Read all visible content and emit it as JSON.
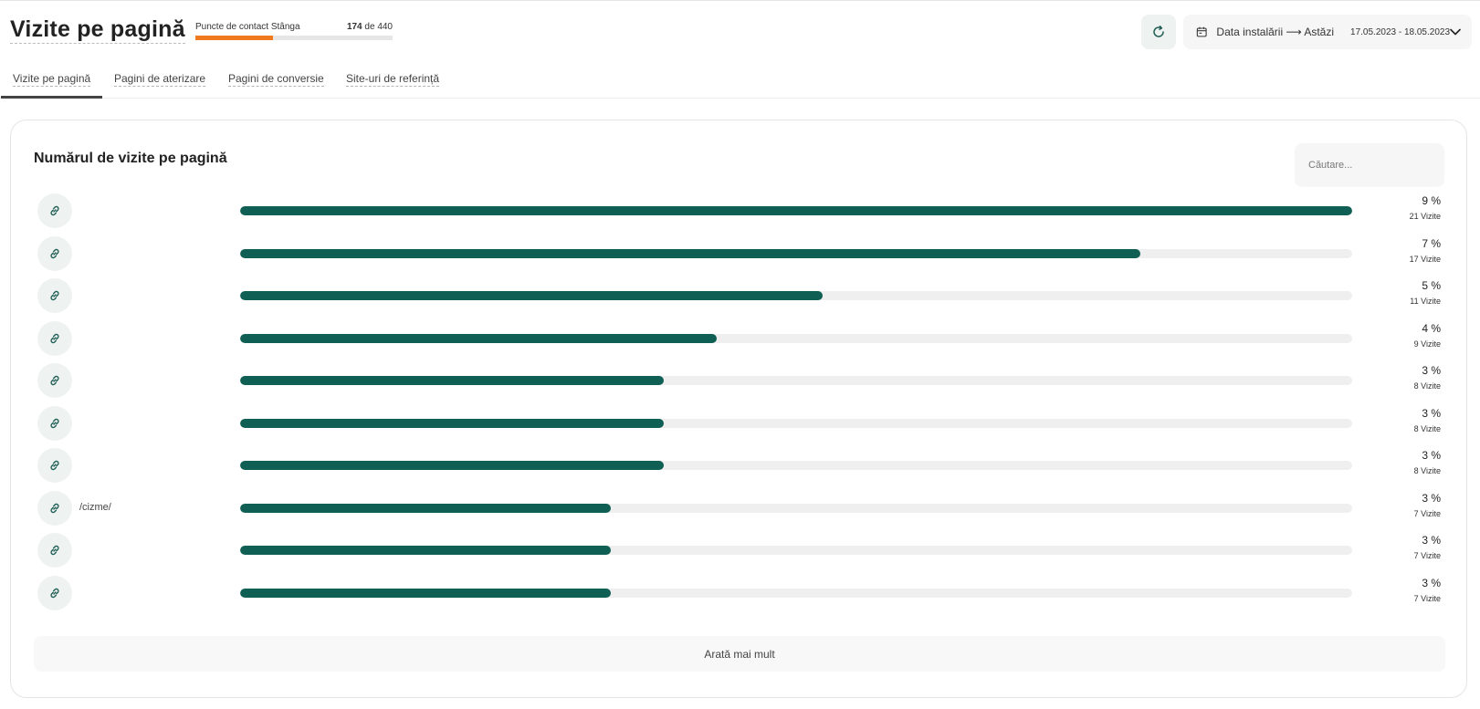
{
  "header": {
    "title": "Vizite pe pagină",
    "contact_points": {
      "label": "Puncte de contact Stânga",
      "used": "174",
      "separator": "de",
      "total": "440",
      "fraction": 0.395,
      "bar_color": "#f07a1e"
    },
    "refresh_icon": "refresh-icon",
    "date_filter": {
      "icon": "calendar-icon",
      "label": "Data instalării ⟶ Astăzi",
      "range": "17.05.2023 - 18.05.2023",
      "chevron": "chevron-down-icon"
    }
  },
  "tabs": [
    {
      "label": "Vizite pe pagină",
      "active": true
    },
    {
      "label": "Pagini de aterizare",
      "active": false
    },
    {
      "label": "Pagini de conversie",
      "active": false
    },
    {
      "label": "Site-uri de referință",
      "active": false
    }
  ],
  "card": {
    "title": "Numărul de vizite pe pagină",
    "search_placeholder": "Căutare...",
    "show_more_label": "Arată mai mult",
    "bar_color": "#0f5f54",
    "track_color": "#efefef",
    "rows": [
      {
        "label": "",
        "percent": "9 %",
        "visits": "21 Vizite",
        "value": 21
      },
      {
        "label": "",
        "percent": "7 %",
        "visits": "17 Vizite",
        "value": 17
      },
      {
        "label": "",
        "percent": "5 %",
        "visits": "11 Vizite",
        "value": 11
      },
      {
        "label": "",
        "percent": "4 %",
        "visits": "9 Vizite",
        "value": 9
      },
      {
        "label": "",
        "percent": "3 %",
        "visits": "8 Vizite",
        "value": 8
      },
      {
        "label": "",
        "percent": "3 %",
        "visits": "8 Vizite",
        "value": 8
      },
      {
        "label": "",
        "percent": "3 %",
        "visits": "8 Vizite",
        "value": 8
      },
      {
        "label": "/cizme/",
        "percent": "3 %",
        "visits": "7 Vizite",
        "value": 7
      },
      {
        "label": "",
        "percent": "3 %",
        "visits": "7 Vizite",
        "value": 7
      },
      {
        "label": "",
        "percent": "3 %",
        "visits": "7 Vizite",
        "value": 7
      }
    ]
  }
}
